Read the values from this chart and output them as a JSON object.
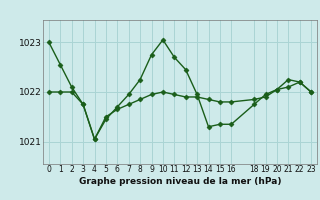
{
  "title": "Graphe pression niveau de la mer (hPa)",
  "bg_color": "#ceeaea",
  "grid_color": "#aad4d4",
  "line_color": "#1a5e1a",
  "xlim": [
    -0.5,
    23.5
  ],
  "ylim": [
    1020.55,
    1023.45
  ],
  "yticks": [
    1021,
    1022,
    1023
  ],
  "xticks": [
    0,
    1,
    2,
    3,
    4,
    5,
    6,
    7,
    8,
    9,
    10,
    11,
    12,
    13,
    14,
    15,
    16,
    18,
    19,
    20,
    21,
    22,
    23
  ],
  "series1_x": [
    0,
    1,
    2,
    3,
    4,
    5,
    6,
    7,
    8,
    9,
    10,
    11,
    12,
    13,
    14,
    15,
    16,
    18,
    19,
    20,
    21,
    22,
    23
  ],
  "series1_y": [
    1023.0,
    1022.55,
    1022.1,
    1021.75,
    1021.05,
    1021.45,
    1021.7,
    1021.95,
    1022.25,
    1022.75,
    1023.05,
    1022.7,
    1022.45,
    1021.95,
    1021.3,
    1021.35,
    1021.35,
    1021.75,
    1021.95,
    1022.05,
    1022.25,
    1022.2,
    1022.0
  ],
  "series2_x": [
    0,
    1,
    2,
    3,
    4,
    5,
    6,
    7,
    8,
    9,
    10,
    11,
    12,
    13,
    14,
    15,
    16,
    18,
    19,
    20,
    21,
    22,
    23
  ],
  "series2_y": [
    1022.0,
    1022.0,
    1022.0,
    1021.75,
    1021.05,
    1021.5,
    1021.65,
    1021.75,
    1021.85,
    1021.95,
    1022.0,
    1021.95,
    1021.9,
    1021.9,
    1021.85,
    1021.8,
    1021.8,
    1021.85,
    1021.9,
    1022.05,
    1022.1,
    1022.2,
    1022.0
  ],
  "label_fontsize": 5.5,
  "ylabel_fontsize": 6.5,
  "title_fontsize": 6.5
}
